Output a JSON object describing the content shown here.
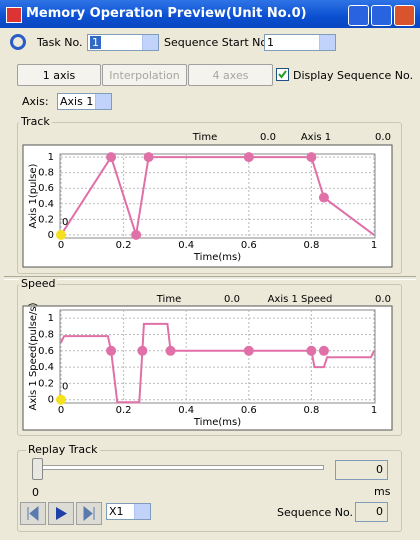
{
  "window": {
    "title": "Memory Operation Preview(Unit No.0)"
  },
  "toolbar": {
    "task_label": "Task No.",
    "task_value": "1",
    "seq_label": "Sequence Start No.",
    "seq_value": "1"
  },
  "buttons": [
    "1 axis",
    "Interpolation",
    "4 axes"
  ],
  "display_seq": {
    "label": "Display Sequence No.",
    "checked": true
  },
  "axis_select": {
    "label": "Axis:",
    "value": "Axis 1"
  },
  "chart_data": [
    {
      "type": "line",
      "group_title": "Track",
      "header": {
        "time_label": "Time",
        "time_value": "0.0",
        "axis_label": "Axis 1",
        "axis_value": "0.0"
      },
      "xlabel": "Time(ms)",
      "ylabel": "Axis 1(pulse)",
      "xlim": [
        0,
        1
      ],
      "ylim": [
        -0.04,
        1.04
      ],
      "xticks": [
        0,
        0.2,
        0.4,
        0.6,
        0.8,
        1
      ],
      "yticks": [
        0,
        0.2,
        0.4,
        0.6,
        0.8,
        1
      ],
      "grid": true,
      "x": [
        0,
        0.16,
        0.24,
        0.28,
        0.6,
        0.8,
        0.84,
        1
      ],
      "values": [
        0,
        1,
        0,
        1,
        1,
        1,
        0.48,
        0
      ],
      "color": "#e070a8",
      "sequence_points": {
        "x": [
          0.16,
          0.24,
          0.28,
          0.6,
          0.8,
          0.84
        ],
        "values": [
          1,
          0,
          1,
          1,
          1,
          0.48
        ]
      },
      "start_point": {
        "x": 0,
        "y": 0,
        "color": "#f5e020"
      },
      "start_label": "0"
    },
    {
      "type": "line",
      "group_title": "Speed",
      "header": {
        "time_label": "Time",
        "time_value": "0.0",
        "axis_label": "Axis 1 Speed",
        "axis_value": "0.0"
      },
      "xlabel": "Time(ms)",
      "ylabel": "Axis 1 Speed(pulse/s)",
      "xlim": [
        0,
        1
      ],
      "ylim": [
        -0.04,
        1.1
      ],
      "xticks": [
        0,
        0.2,
        0.4,
        0.6,
        0.8,
        1
      ],
      "yticks": [
        0,
        0.2,
        0.4,
        0.6,
        0.8,
        1
      ],
      "grid": true,
      "x": [
        0,
        0.01,
        0.15,
        0.16,
        0.18,
        0.25,
        0.26,
        0.265,
        0.34,
        0.35,
        0.8,
        0.81,
        0.84,
        0.85,
        0.99,
        1
      ],
      "values": [
        0.7,
        0.78,
        0.78,
        0.6,
        -0.03,
        -0.03,
        0.6,
        0.93,
        0.93,
        0.6,
        0.6,
        0.4,
        0.4,
        0.52,
        0.52,
        0.6
      ],
      "color": "#e070a8",
      "sequence_points": {
        "x": [
          0.16,
          0.26,
          0.35,
          0.6,
          0.8,
          0.84
        ],
        "values": [
          0.6,
          0.6,
          0.6,
          0.6,
          0.6,
          0.6
        ]
      },
      "start_point": {
        "x": 0,
        "y": 0,
        "color": "#f5e020"
      },
      "start_label": "0"
    }
  ],
  "replay": {
    "title": "Replay Track",
    "slider_tick": "0",
    "time_value": "0",
    "time_unit": "ms",
    "speed": "X1",
    "seq_label": "Sequence No.",
    "seq_value": "0"
  }
}
